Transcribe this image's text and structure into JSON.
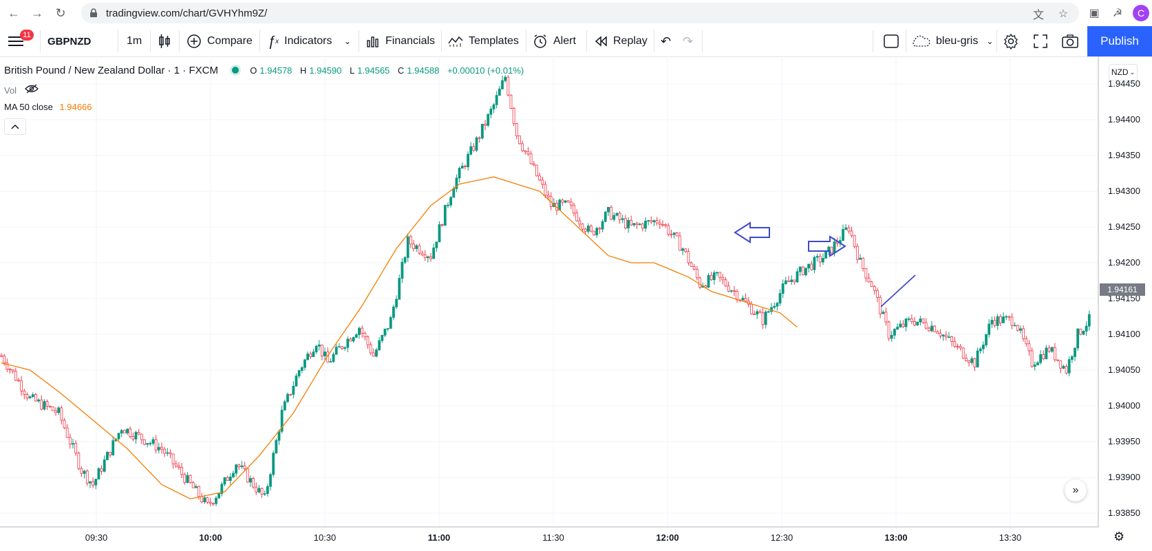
{
  "browser": {
    "url": "tradingview.com/chart/GVHYhm9Z/",
    "profile_initial": "C"
  },
  "toolbar": {
    "menu_badge": "11",
    "symbol": "GBPNZD",
    "interval": "1m",
    "compare": "Compare",
    "indicators": "Indicators",
    "financials": "Financials",
    "templates": "Templates",
    "alert": "Alert",
    "replay": "Replay",
    "layout_name": "bleu-gris",
    "publish": "Publish"
  },
  "legend": {
    "title": "British Pound / New Zealand Dollar · 1 · FXCM",
    "open_label": "O",
    "open": "1.94578",
    "high_label": "H",
    "high": "1.94590",
    "low_label": "L",
    "low": "1.94565",
    "close_label": "C",
    "close": "1.94588",
    "change": "+0.00010 (+0.01%)",
    "vol": "Vol",
    "ma_label": "MA 50 close",
    "ma_value": "1.94666"
  },
  "price_axis": {
    "currency": "NZD",
    "labels": [
      "1.94450",
      "1.94400",
      "1.94350",
      "1.94300",
      "1.94250",
      "1.94200",
      "1.94150",
      "1.94100",
      "1.94050",
      "1.94000",
      "1.93950",
      "1.93900",
      "1.93850"
    ],
    "last_price": "1.94161"
  },
  "time_axis": {
    "labels": [
      "09:30",
      "10:00",
      "10:30",
      "11:00",
      "11:30",
      "12:00",
      "12:30",
      "13:00",
      "13:30"
    ]
  },
  "colors": {
    "up": "#089981",
    "down": "#f23645",
    "ma": "#f57c00",
    "annotation": "#3f48cc",
    "accent": "#2962ff"
  },
  "chart_data": {
    "type": "candlestick",
    "x_range": [
      "09:12",
      "13:52"
    ],
    "ylim": [
      1.9383,
      1.9447
    ],
    "ma_label": "MA 50 close",
    "close_path": [
      [
        0,
        1.9407
      ],
      [
        10,
        1.9401
      ],
      [
        20,
        1.9399
      ],
      [
        28,
        1.9391
      ],
      [
        32,
        1.9389
      ],
      [
        42,
        1.9397
      ],
      [
        56,
        1.9394
      ],
      [
        64,
        1.939
      ],
      [
        72,
        1.9386
      ],
      [
        76,
        1.9388
      ],
      [
        82,
        1.9392
      ],
      [
        92,
        1.9387
      ],
      [
        98,
        1.9399
      ],
      [
        104,
        1.9405
      ],
      [
        110,
        1.9409
      ],
      [
        114,
        1.9406
      ],
      [
        118,
        1.9408
      ],
      [
        125,
        1.9411
      ],
      [
        130,
        1.9407
      ],
      [
        136,
        1.9412
      ],
      [
        142,
        1.9423
      ],
      [
        150,
        1.9421
      ],
      [
        158,
        1.9431
      ],
      [
        166,
        1.9437
      ],
      [
        172,
        1.9442
      ],
      [
        176,
        1.9446
      ],
      [
        180,
        1.9438
      ],
      [
        186,
        1.9433
      ],
      [
        192,
        1.9428
      ],
      [
        198,
        1.9428
      ],
      [
        206,
        1.9424
      ],
      [
        212,
        1.9427
      ],
      [
        220,
        1.9425
      ],
      [
        230,
        1.9426
      ],
      [
        238,
        1.9422
      ],
      [
        244,
        1.9417
      ],
      [
        250,
        1.9418
      ],
      [
        256,
        1.9416
      ],
      [
        266,
        1.9412
      ],
      [
        274,
        1.9417
      ],
      [
        280,
        1.9419
      ],
      [
        288,
        1.9421
      ],
      [
        292,
        1.9423
      ],
      [
        296,
        1.9425
      ],
      [
        300,
        1.942
      ],
      [
        304,
        1.9417
      ],
      [
        310,
        1.941
      ],
      [
        318,
        1.9412
      ],
      [
        326,
        1.9411
      ],
      [
        334,
        1.9408
      ],
      [
        340,
        1.9406
      ],
      [
        346,
        1.9412
      ],
      [
        354,
        1.9412
      ],
      [
        360,
        1.9406
      ],
      [
        366,
        1.9408
      ],
      [
        372,
        1.9405
      ],
      [
        376,
        1.941
      ],
      [
        380,
        1.9412
      ]
    ],
    "ma_path": [
      [
        0,
        1.9406
      ],
      [
        10,
        1.9405
      ],
      [
        20,
        1.9402
      ],
      [
        32,
        1.9398
      ],
      [
        44,
        1.9394
      ],
      [
        56,
        1.9389
      ],
      [
        66,
        1.9387
      ],
      [
        78,
        1.9388
      ],
      [
        90,
        1.9393
      ],
      [
        102,
        1.9399
      ],
      [
        114,
        1.9407
      ],
      [
        126,
        1.9414
      ],
      [
        138,
        1.9422
      ],
      [
        150,
        1.9428
      ],
      [
        160,
        1.9431
      ],
      [
        172,
        1.9432
      ],
      [
        180,
        1.9431
      ],
      [
        188,
        1.943
      ],
      [
        196,
        1.9427
      ],
      [
        204,
        1.9424
      ],
      [
        212,
        1.9421
      ],
      [
        220,
        1.942
      ],
      [
        228,
        1.942
      ],
      [
        234,
        1.9419
      ],
      [
        240,
        1.9418
      ],
      [
        248,
        1.9416
      ],
      [
        256,
        1.9415
      ],
      [
        264,
        1.9414
      ],
      [
        272,
        1.9413
      ],
      [
        278,
        1.9411
      ]
    ],
    "ma_x_offset": 0,
    "annotations": [
      "arrow-left",
      "arrow-right",
      "trend-line"
    ]
  }
}
